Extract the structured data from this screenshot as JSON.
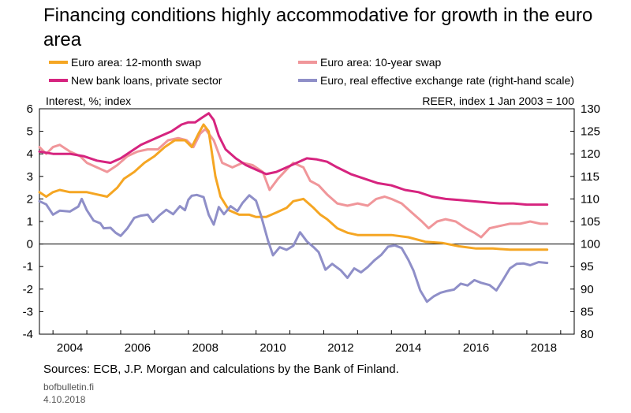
{
  "title": "Financing conditions highly accommodative for growth in the euro area",
  "source": "Sources: ECB, J.P. Morgan and calculations by the Bank of Finland.",
  "site": "bofbulletin.fi",
  "date": "4.10.2018",
  "chart_data": {
    "type": "line",
    "left_axis_label": "Interest, %; index",
    "right_axis_label": "REER, index 1 Jan 2003 = 100",
    "ylim": [
      -4,
      6
    ],
    "y2lim": [
      80,
      130
    ],
    "xlim": [
      2003.6,
      2019.4
    ],
    "left_ticks": [
      "6",
      "5",
      "4",
      "3",
      "2",
      "1",
      "0",
      "-1",
      "-2",
      "-3",
      "-4"
    ],
    "right_ticks": [
      "130",
      "125",
      "120",
      "115",
      "110",
      "105",
      "100",
      "95",
      "90",
      "85",
      "80"
    ],
    "x_ticks": [
      "2004",
      "2006",
      "2008",
      "2010",
      "2012",
      "2014",
      "2016",
      "2018"
    ],
    "grid": false,
    "legend_position": "top",
    "series": [
      {
        "name": "Euro area: 12-month swap",
        "color": "#f5a623",
        "axis": "left",
        "points": [
          [
            2003.6,
            2.3
          ],
          [
            2003.8,
            2.1
          ],
          [
            2004.0,
            2.3
          ],
          [
            2004.2,
            2.4
          ],
          [
            2004.5,
            2.3
          ],
          [
            2004.8,
            2.3
          ],
          [
            2005.0,
            2.3
          ],
          [
            2005.3,
            2.2
          ],
          [
            2005.6,
            2.1
          ],
          [
            2005.9,
            2.5
          ],
          [
            2006.1,
            2.9
          ],
          [
            2006.4,
            3.2
          ],
          [
            2006.7,
            3.6
          ],
          [
            2007.0,
            3.9
          ],
          [
            2007.3,
            4.3
          ],
          [
            2007.6,
            4.6
          ],
          [
            2007.9,
            4.6
          ],
          [
            2008.1,
            4.3
          ],
          [
            2008.3,
            4.9
          ],
          [
            2008.45,
            5.3
          ],
          [
            2008.6,
            5.0
          ],
          [
            2008.8,
            3.0
          ],
          [
            2008.95,
            2.1
          ],
          [
            2009.2,
            1.5
          ],
          [
            2009.5,
            1.3
          ],
          [
            2009.8,
            1.3
          ],
          [
            2010.0,
            1.2
          ],
          [
            2010.3,
            1.2
          ],
          [
            2010.6,
            1.4
          ],
          [
            2010.9,
            1.6
          ],
          [
            2011.1,
            1.9
          ],
          [
            2011.4,
            2.0
          ],
          [
            2011.7,
            1.6
          ],
          [
            2011.9,
            1.3
          ],
          [
            2012.1,
            1.1
          ],
          [
            2012.4,
            0.7
          ],
          [
            2012.7,
            0.5
          ],
          [
            2013.0,
            0.4
          ],
          [
            2013.5,
            0.4
          ],
          [
            2014.0,
            0.4
          ],
          [
            2014.5,
            0.3
          ],
          [
            2015.0,
            0.1
          ],
          [
            2015.5,
            0.05
          ],
          [
            2016.0,
            -0.1
          ],
          [
            2016.5,
            -0.2
          ],
          [
            2017.0,
            -0.2
          ],
          [
            2017.5,
            -0.25
          ],
          [
            2018.0,
            -0.25
          ],
          [
            2018.6,
            -0.25
          ]
        ]
      },
      {
        "name": "Euro area: 10-year swap",
        "color": "#f0969a",
        "axis": "left",
        "points": [
          [
            2003.6,
            4.3
          ],
          [
            2003.8,
            4.0
          ],
          [
            2004.0,
            4.3
          ],
          [
            2004.2,
            4.4
          ],
          [
            2004.5,
            4.1
          ],
          [
            2004.8,
            3.9
          ],
          [
            2005.0,
            3.6
          ],
          [
            2005.3,
            3.4
          ],
          [
            2005.6,
            3.2
          ],
          [
            2005.9,
            3.5
          ],
          [
            2006.2,
            3.9
          ],
          [
            2006.5,
            4.1
          ],
          [
            2006.8,
            4.2
          ],
          [
            2007.1,
            4.2
          ],
          [
            2007.4,
            4.6
          ],
          [
            2007.7,
            4.7
          ],
          [
            2007.95,
            4.6
          ],
          [
            2008.15,
            4.3
          ],
          [
            2008.35,
            4.9
          ],
          [
            2008.5,
            5.1
          ],
          [
            2008.75,
            4.6
          ],
          [
            2009.0,
            3.6
          ],
          [
            2009.3,
            3.4
          ],
          [
            2009.6,
            3.6
          ],
          [
            2009.9,
            3.5
          ],
          [
            2010.2,
            3.2
          ],
          [
            2010.4,
            2.4
          ],
          [
            2010.65,
            2.9
          ],
          [
            2010.9,
            3.3
          ],
          [
            2011.1,
            3.6
          ],
          [
            2011.4,
            3.4
          ],
          [
            2011.6,
            2.8
          ],
          [
            2011.85,
            2.6
          ],
          [
            2012.1,
            2.2
          ],
          [
            2012.4,
            1.8
          ],
          [
            2012.7,
            1.7
          ],
          [
            2013.0,
            1.8
          ],
          [
            2013.3,
            1.7
          ],
          [
            2013.55,
            2.0
          ],
          [
            2013.8,
            2.1
          ],
          [
            2014.0,
            2.0
          ],
          [
            2014.3,
            1.8
          ],
          [
            2014.6,
            1.4
          ],
          [
            2014.9,
            1.0
          ],
          [
            2015.1,
            0.7
          ],
          [
            2015.35,
            1.0
          ],
          [
            2015.6,
            1.1
          ],
          [
            2015.9,
            1.0
          ],
          [
            2016.2,
            0.7
          ],
          [
            2016.45,
            0.5
          ],
          [
            2016.65,
            0.3
          ],
          [
            2016.9,
            0.7
          ],
          [
            2017.2,
            0.8
          ],
          [
            2017.5,
            0.9
          ],
          [
            2017.8,
            0.9
          ],
          [
            2018.1,
            1.0
          ],
          [
            2018.4,
            0.9
          ],
          [
            2018.6,
            0.9
          ]
        ]
      },
      {
        "name": "New bank loans, private sector",
        "color": "#d6247f",
        "axis": "left",
        "points": [
          [
            2003.6,
            4.1
          ],
          [
            2004.0,
            4.0
          ],
          [
            2004.5,
            4.0
          ],
          [
            2004.9,
            3.9
          ],
          [
            2005.3,
            3.7
          ],
          [
            2005.7,
            3.6
          ],
          [
            2006.0,
            3.8
          ],
          [
            2006.3,
            4.1
          ],
          [
            2006.6,
            4.4
          ],
          [
            2006.9,
            4.6
          ],
          [
            2007.2,
            4.8
          ],
          [
            2007.5,
            5.0
          ],
          [
            2007.8,
            5.3
          ],
          [
            2008.0,
            5.4
          ],
          [
            2008.2,
            5.4
          ],
          [
            2008.4,
            5.6
          ],
          [
            2008.6,
            5.8
          ],
          [
            2008.75,
            5.5
          ],
          [
            2008.9,
            4.8
          ],
          [
            2009.1,
            4.2
          ],
          [
            2009.4,
            3.8
          ],
          [
            2009.7,
            3.5
          ],
          [
            2010.0,
            3.3
          ],
          [
            2010.3,
            3.1
          ],
          [
            2010.6,
            3.2
          ],
          [
            2010.9,
            3.4
          ],
          [
            2011.2,
            3.6
          ],
          [
            2011.5,
            3.8
          ],
          [
            2011.8,
            3.75
          ],
          [
            2012.1,
            3.65
          ],
          [
            2012.4,
            3.4
          ],
          [
            2012.8,
            3.1
          ],
          [
            2013.2,
            2.9
          ],
          [
            2013.6,
            2.7
          ],
          [
            2014.0,
            2.6
          ],
          [
            2014.4,
            2.4
          ],
          [
            2014.8,
            2.3
          ],
          [
            2015.2,
            2.1
          ],
          [
            2015.6,
            2.0
          ],
          [
            2016.0,
            1.95
          ],
          [
            2016.4,
            1.9
          ],
          [
            2016.8,
            1.85
          ],
          [
            2017.2,
            1.8
          ],
          [
            2017.6,
            1.8
          ],
          [
            2018.0,
            1.75
          ],
          [
            2018.6,
            1.75
          ]
        ]
      },
      {
        "name": "Euro, real effective exchange rate (right-hand scale)",
        "color": "#8f8fc8",
        "axis": "right",
        "points": [
          [
            2003.6,
            109.5
          ],
          [
            2003.8,
            108.8
          ],
          [
            2004.0,
            106.5
          ],
          [
            2004.2,
            107.4
          ],
          [
            2004.5,
            107.2
          ],
          [
            2004.75,
            108.3
          ],
          [
            2004.85,
            110.0
          ],
          [
            2005.0,
            107.5
          ],
          [
            2005.2,
            105.2
          ],
          [
            2005.4,
            104.6
          ],
          [
            2005.5,
            103.5
          ],
          [
            2005.7,
            103.6
          ],
          [
            2005.85,
            102.5
          ],
          [
            2006.0,
            101.8
          ],
          [
            2006.2,
            103.5
          ],
          [
            2006.4,
            105.8
          ],
          [
            2006.6,
            106.3
          ],
          [
            2006.8,
            106.5
          ],
          [
            2006.95,
            104.9
          ],
          [
            2007.15,
            106.4
          ],
          [
            2007.35,
            107.6
          ],
          [
            2007.55,
            106.6
          ],
          [
            2007.75,
            108.4
          ],
          [
            2007.9,
            107.5
          ],
          [
            2008.0,
            109.8
          ],
          [
            2008.1,
            110.7
          ],
          [
            2008.25,
            110.9
          ],
          [
            2008.45,
            110.4
          ],
          [
            2008.6,
            106.5
          ],
          [
            2008.75,
            104.3
          ],
          [
            2008.9,
            108.2
          ],
          [
            2009.05,
            106.6
          ],
          [
            2009.25,
            108.4
          ],
          [
            2009.45,
            107.3
          ],
          [
            2009.6,
            109.1
          ],
          [
            2009.8,
            110.8
          ],
          [
            2010.0,
            109.6
          ],
          [
            2010.15,
            106.2
          ],
          [
            2010.35,
            100.8
          ],
          [
            2010.5,
            97.5
          ],
          [
            2010.7,
            99.3
          ],
          [
            2010.9,
            98.7
          ],
          [
            2011.1,
            99.6
          ],
          [
            2011.3,
            102.6
          ],
          [
            2011.5,
            100.6
          ],
          [
            2011.7,
            99.3
          ],
          [
            2011.85,
            98.2
          ],
          [
            2012.05,
            94.3
          ],
          [
            2012.25,
            95.6
          ],
          [
            2012.5,
            94.2
          ],
          [
            2012.7,
            92.5
          ],
          [
            2012.9,
            94.6
          ],
          [
            2013.1,
            93.7
          ],
          [
            2013.3,
            94.9
          ],
          [
            2013.5,
            96.4
          ],
          [
            2013.7,
            97.6
          ],
          [
            2013.9,
            99.4
          ],
          [
            2014.1,
            99.7
          ],
          [
            2014.3,
            99.1
          ],
          [
            2014.5,
            96.5
          ],
          [
            2014.65,
            94.1
          ],
          [
            2014.85,
            89.7
          ],
          [
            2015.05,
            87.2
          ],
          [
            2015.25,
            88.4
          ],
          [
            2015.45,
            89.2
          ],
          [
            2015.65,
            89.6
          ],
          [
            2015.85,
            89.9
          ],
          [
            2016.05,
            91.2
          ],
          [
            2016.25,
            90.8
          ],
          [
            2016.45,
            92.0
          ],
          [
            2016.65,
            91.4
          ],
          [
            2016.9,
            90.9
          ],
          [
            2017.1,
            89.7
          ],
          [
            2017.3,
            92.1
          ],
          [
            2017.5,
            94.6
          ],
          [
            2017.7,
            95.6
          ],
          [
            2017.9,
            95.7
          ],
          [
            2018.1,
            95.3
          ],
          [
            2018.35,
            96.0
          ],
          [
            2018.6,
            95.8
          ]
        ]
      }
    ]
  }
}
